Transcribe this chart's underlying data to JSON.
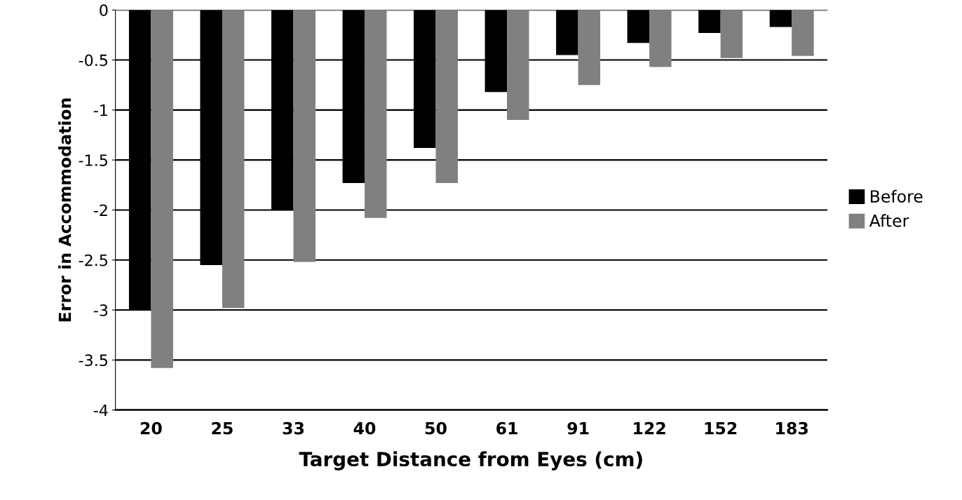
{
  "chart_data": {
    "type": "bar",
    "xlabel": "Target Distance from Eyes (cm)",
    "ylabel": "Error in Accommodation",
    "categories": [
      "20",
      "25",
      "33",
      "40",
      "50",
      "61",
      "91",
      "122",
      "152",
      "183"
    ],
    "series": [
      {
        "name": "Before",
        "color": "#000000",
        "values": [
          -3.0,
          -2.55,
          -2.0,
          -1.73,
          -1.38,
          -0.82,
          -0.45,
          -0.33,
          -0.23,
          -0.17
        ]
      },
      {
        "name": "After",
        "color": "#808080",
        "values": [
          -3.58,
          -2.98,
          -2.52,
          -2.08,
          -1.73,
          -1.1,
          -0.75,
          -0.57,
          -0.48,
          -0.46
        ]
      }
    ],
    "ylim": [
      -4,
      0
    ],
    "yticks": [
      -4,
      -3.5,
      -3,
      -2.5,
      -2,
      -1.5,
      -1,
      -0.5,
      0
    ],
    "grid": "y",
    "legend": "right"
  }
}
